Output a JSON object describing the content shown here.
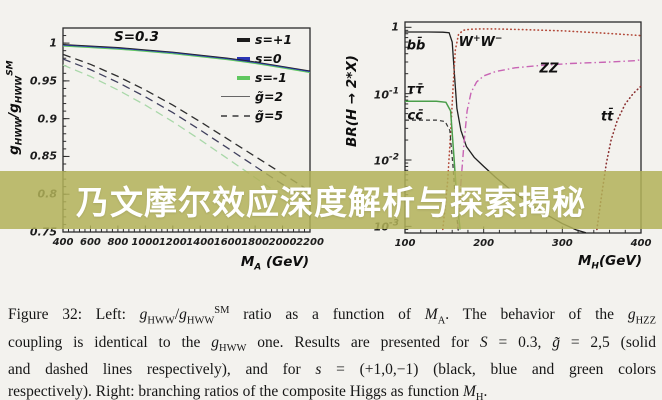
{
  "page": {
    "background": "#f3f2ee"
  },
  "banner": {
    "text": "乃文摩尔效应深度解析与探索揭秘",
    "bg_color": "#b1b258",
    "bg_opacity": 0.85,
    "text_color": "#ffffff"
  },
  "caption": {
    "lines": [
      "Figure 32:  Left: *g*_{HWW}/*g*_{HWW}^{SM} ratio as a function of *M*_{A}.  The behavior of the *g*_{HZZ}",
      "coupling is identical to the *g*_{HWW} one. Results are presented for *S* = 0.3, *g̃* = 2,5 (solid",
      "and dashed lines respectively), and for *s* = (+1,0,−1) (black, blue and green colors",
      "respectively). Right: branching ratios of the composite Higgs as function *M*_{H}."
    ]
  },
  "chart_data": [
    {
      "type": "line",
      "title": "S=0.3",
      "xlabel": "M_{A} (GeV)",
      "ylabel": "g_{HWW}/g_{HWW}^{SM}",
      "xlim": [
        400,
        2200
      ],
      "ylim": [
        0.75,
        1.02
      ],
      "xticks": [
        400,
        600,
        800,
        1000,
        1200,
        1400,
        1600,
        1800,
        2000,
        2200
      ],
      "xminor": 40,
      "yticks": [
        1,
        0.95,
        0.9,
        0.85,
        0.8,
        0.75
      ],
      "ytick_labels": [
        "1",
        "0.95",
        "0.9",
        "0.85",
        "0.8",
        "0.75"
      ],
      "yminor": 0.01,
      "grid": false,
      "legend_position": "top-right-inside",
      "legend": [
        {
          "style": "thick-dash",
          "color": "#1c1c1c",
          "label": "s=+1"
        },
        {
          "style": "thick-dash",
          "color": "#2a35b5",
          "label": "s=0"
        },
        {
          "style": "thick-dash",
          "color": "#5fc75f",
          "label": "s=-1"
        },
        {
          "style": "line",
          "color": "#666666",
          "label": "g̃=2"
        },
        {
          "style": "dash",
          "color": "#666666",
          "label": "g̃=5"
        }
      ],
      "series": [
        {
          "name": "s=+1 g=2",
          "color": "#222222",
          "width": 1.1,
          "dash": null,
          "x": [
            400,
            600,
            800,
            1000,
            1200,
            1400,
            1600,
            1800,
            2000,
            2200
          ],
          "y": [
            0.998,
            0.996,
            0.994,
            0.991,
            0.988,
            0.984,
            0.98,
            0.975,
            0.969,
            0.963
          ]
        },
        {
          "name": "s=0 g=2",
          "color": "#2a35b5",
          "width": 1.0,
          "dash": null,
          "x": [
            400,
            600,
            800,
            1000,
            1200,
            1400,
            1600,
            1800,
            2000,
            2200
          ],
          "y": [
            0.997,
            0.995,
            0.993,
            0.99,
            0.987,
            0.983,
            0.979,
            0.974,
            0.968,
            0.962
          ]
        },
        {
          "name": "s=-1 g=2",
          "color": "#5fc75f",
          "width": 1.0,
          "dash": null,
          "x": [
            400,
            600,
            800,
            1000,
            1200,
            1400,
            1600,
            1800,
            2000,
            2200
          ],
          "y": [
            0.996,
            0.994,
            0.992,
            0.989,
            0.986,
            0.982,
            0.978,
            0.973,
            0.967,
            0.961
          ]
        },
        {
          "name": "s=+1 g=5",
          "color": "#2e2e2e",
          "width": 1.3,
          "dash": "8 5",
          "x": [
            400,
            600,
            800,
            1000,
            1200,
            1400,
            1600,
            1800,
            2000,
            2200
          ],
          "y": [
            0.985,
            0.972,
            0.956,
            0.938,
            0.918,
            0.896,
            0.873,
            0.85,
            0.827,
            0.804
          ]
        },
        {
          "name": "s=0 g=5",
          "color": "#40405e",
          "width": 1.3,
          "dash": "8 5",
          "x": [
            400,
            600,
            800,
            1000,
            1200,
            1400,
            1600,
            1800,
            2000,
            2200
          ],
          "y": [
            0.979,
            0.965,
            0.948,
            0.929,
            0.908,
            0.885,
            0.861,
            0.837,
            0.813,
            0.789
          ]
        },
        {
          "name": "s=-1 g=5",
          "color": "#a9d8a9",
          "width": 1.3,
          "dash": "8 5",
          "x": [
            400,
            600,
            800,
            1000,
            1200,
            1400,
            1600,
            1800,
            2000,
            2200
          ],
          "y": [
            0.971,
            0.956,
            0.938,
            0.918,
            0.896,
            0.872,
            0.847,
            0.822,
            0.797,
            0.772
          ]
        }
      ]
    },
    {
      "type": "line",
      "ylog": true,
      "xlabel": "M_{H}(GeV)",
      "ylabel": "BR(H → 2*X)",
      "xlim": [
        100,
        400
      ],
      "yloglim": [
        -3.1,
        0.08
      ],
      "xticks": [
        100,
        200,
        300,
        400
      ],
      "xminor": 20,
      "yticks": [
        1,
        0.1,
        0.01,
        0.001
      ],
      "ytick_labels": [
        "1",
        "10^{-1}",
        "10^{-2}",
        "10^{-3}"
      ],
      "grid": false,
      "curve_labels": [
        {
          "text": "bb̄",
          "x": 114,
          "y": 0.52
        },
        {
          "text": "W^{+}W^{−}",
          "x": 196,
          "y": 0.6
        },
        {
          "text": "ZZ",
          "x": 283,
          "y": 0.235
        },
        {
          "text": "ττ̄",
          "x": 113,
          "y": 0.115
        },
        {
          "text": "cc̄",
          "x": 113,
          "y": 0.046
        },
        {
          "text": "tt̄",
          "x": 357,
          "y": 0.045
        }
      ],
      "series": [
        {
          "name": "bb",
          "color": "#1f1f1f",
          "width": 1.3,
          "dash": null,
          "x": [
            100,
            130,
            148,
            156,
            160,
            163,
            166,
            171,
            178,
            188,
            200,
            215,
            235,
            258,
            280,
            300,
            318,
            330
          ],
          "y": [
            0.85,
            0.85,
            0.845,
            0.83,
            0.6,
            0.18,
            0.06,
            0.028,
            0.016,
            0.011,
            0.008,
            0.0055,
            0.0035,
            0.0022,
            0.0015,
            0.0011,
            0.00088,
            0.0008
          ]
        },
        {
          "name": "WW",
          "color": "#b34a3a",
          "width": 1.6,
          "dash": "0.5 3.4",
          "cap": "round",
          "x": [
            148,
            154,
            158,
            161,
            164,
            168,
            174,
            183,
            195,
            215,
            250,
            300,
            350,
            400
          ],
          "y": [
            0.0009,
            0.0045,
            0.025,
            0.12,
            0.45,
            0.78,
            0.9,
            0.935,
            0.945,
            0.945,
            0.925,
            0.885,
            0.82,
            0.75
          ]
        },
        {
          "name": "ZZ",
          "color": "#c864b4",
          "width": 1.4,
          "dash": "7 3 1.5 3",
          "x": [
            167,
            171,
            175,
            179,
            184,
            191,
            200,
            215,
            240,
            270,
            310,
            360,
            395,
            400
          ],
          "y": [
            0.0009,
            0.0045,
            0.018,
            0.055,
            0.105,
            0.15,
            0.185,
            0.215,
            0.245,
            0.265,
            0.285,
            0.3,
            0.315,
            0.33
          ]
        },
        {
          "name": "tautau",
          "color": "#4a9e4a",
          "width": 1.5,
          "dash": null,
          "x": [
            100,
            140,
            152,
            158,
            162,
            166,
            170
          ],
          "y": [
            0.077,
            0.077,
            0.074,
            0.055,
            0.012,
            0.0025,
            0.0009
          ]
        },
        {
          "name": "cc",
          "color": "#333333",
          "width": 1.2,
          "dash": "4 3",
          "x": [
            100,
            140,
            151,
            157,
            161,
            165,
            168
          ],
          "y": [
            0.04,
            0.04,
            0.038,
            0.028,
            0.008,
            0.0018,
            0.0008
          ]
        },
        {
          "name": "tt",
          "color": "#8a2f2f",
          "width": 1.6,
          "dash": "0.5 3.4",
          "cap": "round",
          "x": [
            344,
            350,
            356,
            362,
            370,
            380,
            390,
            400
          ],
          "y": [
            0.0009,
            0.003,
            0.009,
            0.02,
            0.04,
            0.07,
            0.1,
            0.13
          ]
        }
      ]
    }
  ]
}
